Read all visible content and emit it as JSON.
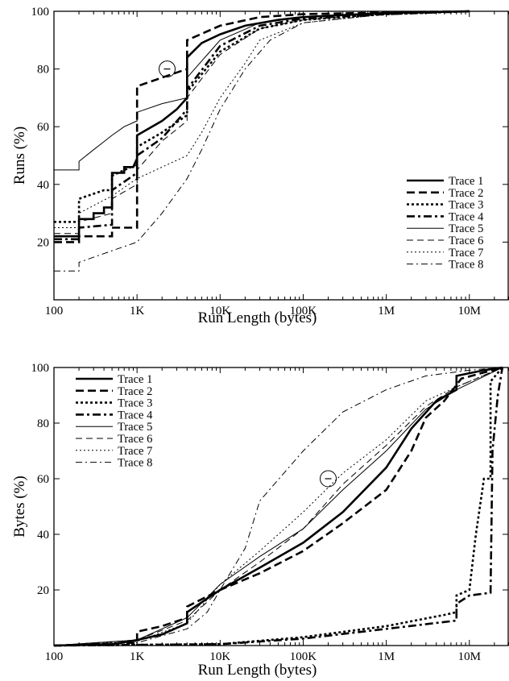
{
  "chart_data": [
    {
      "type": "line",
      "xscale": "log",
      "xlim": [
        100,
        30000000
      ],
      "ylim": [
        0,
        100
      ],
      "xticks": [
        {
          "value": 100,
          "label": "100"
        },
        {
          "value": 1000,
          "label": "1K"
        },
        {
          "value": 10000,
          "label": "10K"
        },
        {
          "value": 100000,
          "label": "100K"
        },
        {
          "value": 1000000,
          "label": "1M"
        },
        {
          "value": 10000000,
          "label": "10M"
        }
      ],
      "yticks": [
        {
          "value": 20,
          "label": "20"
        },
        {
          "value": 40,
          "label": "40"
        },
        {
          "value": 60,
          "label": "60"
        },
        {
          "value": 80,
          "label": "80"
        },
        {
          "value": 100,
          "label": "100"
        }
      ],
      "xlabel": "Run Length (bytes)",
      "ylabel": "Runs (%)",
      "legend_position": "bottom-right",
      "annotation": {
        "type": "circled-minus",
        "x": 2300,
        "y": 80
      },
      "series": [
        {
          "name": "Trace 1",
          "style": "thick-solid",
          "points": [
            [
              100,
              22
            ],
            [
              200,
              22
            ],
            [
              200,
              28
            ],
            [
              300,
              28
            ],
            [
              300,
              30
            ],
            [
              400,
              30
            ],
            [
              400,
              32
            ],
            [
              500,
              32
            ],
            [
              500,
              44
            ],
            [
              700,
              44
            ],
            [
              700,
              46
            ],
            [
              900,
              46
            ],
            [
              1000,
              49
            ],
            [
              1000,
              57
            ],
            [
              2000,
              62
            ],
            [
              3000,
              66
            ],
            [
              4000,
              70
            ],
            [
              4000,
              84
            ],
            [
              6000,
              89
            ],
            [
              10000,
              92
            ],
            [
              20000,
              95
            ],
            [
              50000,
              97
            ],
            [
              100000,
              98
            ],
            [
              1000000,
              99.4
            ],
            [
              10000000,
              100
            ]
          ]
        },
        {
          "name": "Trace 2",
          "style": "thick-dashed",
          "points": [
            [
              100,
              20
            ],
            [
              200,
              20
            ],
            [
              200,
              22
            ],
            [
              500,
              22
            ],
            [
              500,
              25
            ],
            [
              1000,
              25
            ],
            [
              1000,
              74
            ],
            [
              2000,
              77
            ],
            [
              4000,
              80
            ],
            [
              4000,
              90
            ],
            [
              10000,
              95
            ],
            [
              30000,
              98
            ],
            [
              100000,
              99
            ],
            [
              1000000,
              99.6
            ],
            [
              10000000,
              100
            ]
          ]
        },
        {
          "name": "Trace 3",
          "style": "thick-dotted",
          "points": [
            [
              100,
              27
            ],
            [
              200,
              27
            ],
            [
              200,
              35
            ],
            [
              400,
              38
            ],
            [
              500,
              38
            ],
            [
              500,
              43
            ],
            [
              1000,
              47
            ],
            [
              1000,
              53
            ],
            [
              2000,
              58
            ],
            [
              4000,
              64
            ],
            [
              4000,
              72
            ],
            [
              10000,
              86
            ],
            [
              30000,
              94
            ],
            [
              100000,
              97
            ],
            [
              1000000,
              99
            ],
            [
              10000000,
              100
            ]
          ]
        },
        {
          "name": "Trace 4",
          "style": "thick-dashdot",
          "points": [
            [
              100,
              21
            ],
            [
              200,
              21
            ],
            [
              200,
              25
            ],
            [
              500,
              26
            ],
            [
              500,
              38
            ],
            [
              1000,
              44
            ],
            [
              1000,
              50
            ],
            [
              2000,
              56
            ],
            [
              4000,
              66
            ],
            [
              4000,
              73
            ],
            [
              10000,
              88
            ],
            [
              30000,
              95
            ],
            [
              100000,
              97.5
            ],
            [
              1000000,
              99
            ],
            [
              10000000,
              100
            ]
          ]
        },
        {
          "name": "Trace 5",
          "style": "thin-solid",
          "points": [
            [
              100,
              45
            ],
            [
              200,
              45
            ],
            [
              200,
              48
            ],
            [
              300,
              52
            ],
            [
              500,
              57
            ],
            [
              700,
              60
            ],
            [
              1000,
              62
            ],
            [
              1000,
              65
            ],
            [
              2000,
              68
            ],
            [
              4000,
              70
            ],
            [
              4000,
              77
            ],
            [
              10000,
              90
            ],
            [
              30000,
              96
            ],
            [
              100000,
              98
            ],
            [
              1000000,
              99.2
            ],
            [
              10000000,
              100
            ]
          ]
        },
        {
          "name": "Trace 6",
          "style": "thin-dashed",
          "points": [
            [
              100,
              23
            ],
            [
              200,
              23
            ],
            [
              200,
              27
            ],
            [
              500,
              30
            ],
            [
              500,
              35
            ],
            [
              1000,
              40
            ],
            [
              1000,
              45
            ],
            [
              2000,
              55
            ],
            [
              4000,
              62
            ],
            [
              4000,
              70
            ],
            [
              10000,
              85
            ],
            [
              30000,
              94
            ],
            [
              100000,
              97
            ],
            [
              1000000,
              99
            ],
            [
              10000000,
              100
            ]
          ]
        },
        {
          "name": "Trace 7",
          "style": "thin-dotted",
          "points": [
            [
              100,
              25
            ],
            [
              200,
              25
            ],
            [
              200,
              30
            ],
            [
              500,
              36
            ],
            [
              1000,
              42
            ],
            [
              2000,
              46
            ],
            [
              4000,
              50
            ],
            [
              6000,
              58
            ],
            [
              10000,
              70
            ],
            [
              20000,
              82
            ],
            [
              30000,
              90
            ],
            [
              100000,
              96
            ],
            [
              1000000,
              99
            ],
            [
              10000000,
              100
            ]
          ]
        },
        {
          "name": "Trace 8",
          "style": "thin-dashdot",
          "points": [
            [
              100,
              10
            ],
            [
              200,
              10
            ],
            [
              200,
              13
            ],
            [
              500,
              17
            ],
            [
              1000,
              20
            ],
            [
              2000,
              30
            ],
            [
              4000,
              42
            ],
            [
              6000,
              52
            ],
            [
              10000,
              66
            ],
            [
              20000,
              80
            ],
            [
              40000,
              90
            ],
            [
              100000,
              96
            ],
            [
              1000000,
              99
            ],
            [
              10000000,
              100
            ]
          ]
        }
      ]
    },
    {
      "type": "line",
      "xscale": "log",
      "xlim": [
        100,
        30000000
      ],
      "ylim": [
        0,
        100
      ],
      "xticks": [
        {
          "value": 100,
          "label": "100"
        },
        {
          "value": 1000,
          "label": "1K"
        },
        {
          "value": 10000,
          "label": "10K"
        },
        {
          "value": 100000,
          "label": "100K"
        },
        {
          "value": 1000000,
          "label": "1M"
        },
        {
          "value": 10000000,
          "label": "10M"
        }
      ],
      "yticks": [
        {
          "value": 20,
          "label": "20"
        },
        {
          "value": 40,
          "label": "40"
        },
        {
          "value": 60,
          "label": "60"
        },
        {
          "value": 80,
          "label": "80"
        },
        {
          "value": 100,
          "label": "100"
        }
      ],
      "xlabel": "Run Length (bytes)",
      "ylabel": "Bytes (%)",
      "legend_position": "top-left",
      "annotation": {
        "type": "circled-minus",
        "x": 200000,
        "y": 60
      },
      "series": [
        {
          "name": "Trace 1",
          "style": "thick-solid",
          "points": [
            [
              100,
              0
            ],
            [
              500,
              0.5
            ],
            [
              1000,
              2
            ],
            [
              2000,
              4
            ],
            [
              4000,
              8
            ],
            [
              4000,
              12
            ],
            [
              10000,
              20
            ],
            [
              30000,
              28
            ],
            [
              100000,
              37
            ],
            [
              300000,
              48
            ],
            [
              1000000,
              64
            ],
            [
              2000000,
              78
            ],
            [
              4000000,
              88
            ],
            [
              7000000,
              92
            ],
            [
              7000000,
              97
            ],
            [
              15000000,
              99
            ],
            [
              25000000,
              100
            ]
          ]
        },
        {
          "name": "Trace 2",
          "style": "thick-dashed",
          "points": [
            [
              100,
              0
            ],
            [
              1000,
              1
            ],
            [
              1000,
              5
            ],
            [
              2000,
              7
            ],
            [
              4000,
              10
            ],
            [
              4000,
              14
            ],
            [
              10000,
              20
            ],
            [
              30000,
              26
            ],
            [
              100000,
              34
            ],
            [
              300000,
              44
            ],
            [
              1000000,
              56
            ],
            [
              2000000,
              70
            ],
            [
              3000000,
              82
            ],
            [
              5000000,
              88
            ],
            [
              8000000,
              96
            ],
            [
              25000000,
              100
            ]
          ]
        },
        {
          "name": "Trace 3",
          "style": "thick-dotted",
          "points": [
            [
              100,
              0
            ],
            [
              10000,
              0.5
            ],
            [
              100000,
              3
            ],
            [
              1000000,
              7
            ],
            [
              5000000,
              11
            ],
            [
              7000000,
              12
            ],
            [
              7000000,
              18
            ],
            [
              10000000,
              20
            ],
            [
              12000000,
              40
            ],
            [
              15000000,
              60
            ],
            [
              18000000,
              60
            ],
            [
              18000000,
              95
            ],
            [
              25000000,
              100
            ]
          ]
        },
        {
          "name": "Trace 4",
          "style": "thick-dashdot",
          "points": [
            [
              100,
              0
            ],
            [
              10000,
              0.5
            ],
            [
              100000,
              2.5
            ],
            [
              1000000,
              6
            ],
            [
              7000000,
              9
            ],
            [
              7000000,
              15
            ],
            [
              10000000,
              18
            ],
            [
              18000000,
              19
            ],
            [
              19000000,
              70
            ],
            [
              22000000,
              90
            ],
            [
              25000000,
              100
            ]
          ]
        },
        {
          "name": "Trace 5",
          "style": "thin-solid",
          "points": [
            [
              100,
              0
            ],
            [
              1000,
              2
            ],
            [
              4000,
              10
            ],
            [
              10000,
              22
            ],
            [
              30000,
              32
            ],
            [
              100000,
              42
            ],
            [
              300000,
              56
            ],
            [
              1000000,
              70
            ],
            [
              3000000,
              85
            ],
            [
              7000000,
              92
            ],
            [
              25000000,
              100
            ]
          ]
        },
        {
          "name": "Trace 6",
          "style": "thin-dashed",
          "points": [
            [
              100,
              0
            ],
            [
              1000,
              2
            ],
            [
              4000,
              9
            ],
            [
              10000,
              20
            ],
            [
              30000,
              30
            ],
            [
              100000,
              42
            ],
            [
              300000,
              58
            ],
            [
              1000000,
              72
            ],
            [
              3000000,
              86
            ],
            [
              7000000,
              93
            ],
            [
              25000000,
              100
            ]
          ]
        },
        {
          "name": "Trace 7",
          "style": "thin-dotted",
          "points": [
            [
              100,
              0
            ],
            [
              1000,
              1.5
            ],
            [
              4000,
              8
            ],
            [
              10000,
              22
            ],
            [
              30000,
              34
            ],
            [
              100000,
              48
            ],
            [
              300000,
              62
            ],
            [
              1000000,
              74
            ],
            [
              3000000,
              88
            ],
            [
              7000000,
              93
            ],
            [
              25000000,
              100
            ]
          ]
        },
        {
          "name": "Trace 8",
          "style": "thin-dashdot",
          "points": [
            [
              100,
              0
            ],
            [
              1000,
              1
            ],
            [
              4000,
              6
            ],
            [
              7000,
              12
            ],
            [
              10000,
              20
            ],
            [
              20000,
              35
            ],
            [
              30000,
              52
            ],
            [
              100000,
              70
            ],
            [
              300000,
              84
            ],
            [
              1000000,
              92
            ],
            [
              3000000,
              97
            ],
            [
              10000000,
              99
            ],
            [
              25000000,
              100
            ]
          ]
        }
      ]
    }
  ]
}
